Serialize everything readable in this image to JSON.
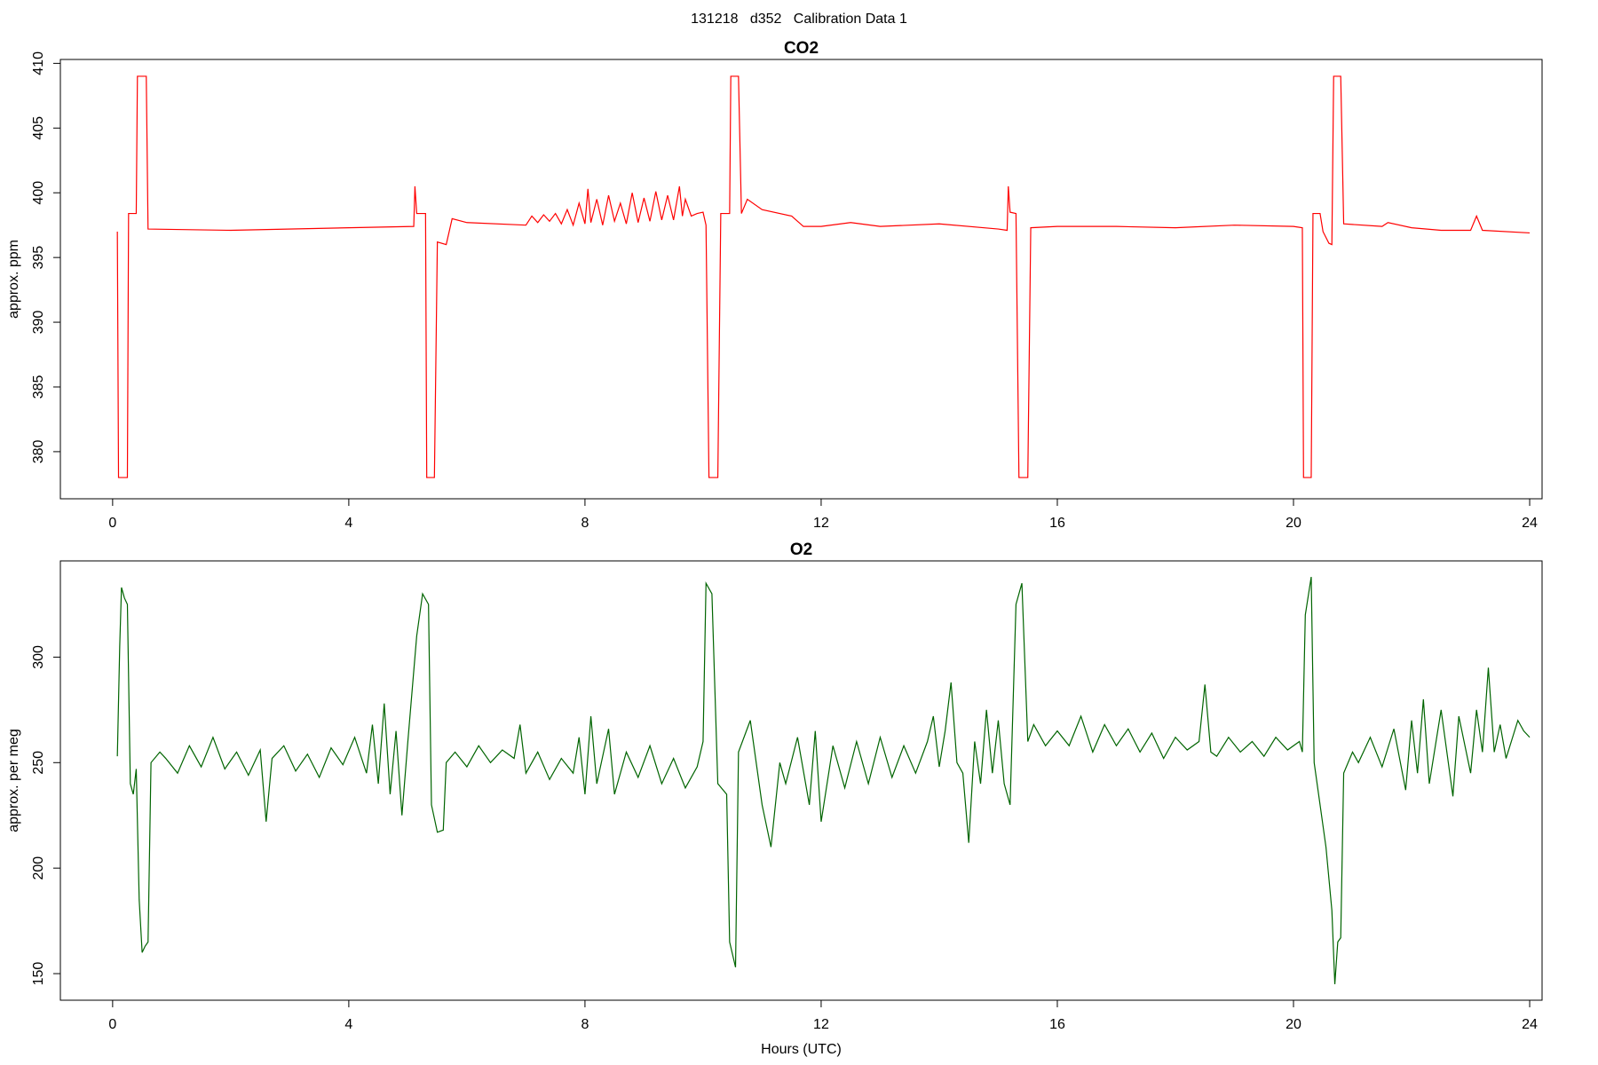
{
  "title": "131218   d352   Calibration Data 1",
  "chart_data": [
    {
      "type": "line",
      "title": "CO2",
      "ylabel": "approx. ppm",
      "color": "#ff0000",
      "xlim": [
        -0.885,
        24.21
      ],
      "xticks": [
        0,
        4,
        8,
        12,
        16,
        20,
        24
      ],
      "ylim": [
        376.36,
        410.3
      ],
      "yticks": [
        380,
        385,
        390,
        395,
        400,
        405,
        410
      ],
      "x": [
        0.08,
        0.1,
        0.25,
        0.27,
        0.4,
        0.42,
        0.57,
        0.6,
        2,
        4,
        5.1,
        5.12,
        5.15,
        5.3,
        5.32,
        5.45,
        5.5,
        5.65,
        5.75,
        6,
        7,
        7.1,
        7.2,
        7.3,
        7.4,
        7.5,
        7.6,
        7.7,
        7.8,
        7.9,
        8.0,
        8.05,
        8.1,
        8.2,
        8.3,
        8.4,
        8.5,
        8.6,
        8.7,
        8.8,
        8.9,
        9.0,
        9.1,
        9.2,
        9.3,
        9.4,
        9.5,
        9.6,
        9.65,
        9.7,
        9.8,
        9.9,
        10.0,
        10.05,
        10.1,
        10.25,
        10.3,
        10.45,
        10.47,
        10.6,
        10.65,
        10.75,
        11,
        11.5,
        11.7,
        12,
        12.5,
        13,
        14,
        15,
        15.15,
        15.17,
        15.2,
        15.3,
        15.35,
        15.5,
        15.55,
        16,
        17,
        18,
        19,
        20,
        20.15,
        20.17,
        20.3,
        20.33,
        20.45,
        20.5,
        20.6,
        20.65,
        20.68,
        20.8,
        20.85,
        21.5,
        21.6,
        22,
        22.5,
        23,
        23.1,
        23.2,
        24
      ],
      "values": [
        397,
        378,
        378,
        398.4,
        398.4,
        409,
        409,
        397.2,
        397.1,
        397.3,
        397.4,
        400.5,
        398.4,
        398.4,
        378,
        378,
        396.2,
        396,
        398,
        397.7,
        397.5,
        398.2,
        397.7,
        398.3,
        397.8,
        398.4,
        397.6,
        398.7,
        397.5,
        399.2,
        397.6,
        400.3,
        397.7,
        399.5,
        397.5,
        399.8,
        397.8,
        399.2,
        397.6,
        400.0,
        397.7,
        399.6,
        397.8,
        400.1,
        397.9,
        399.8,
        397.9,
        400.5,
        398.2,
        399.5,
        398.2,
        398.4,
        398.5,
        397.5,
        378,
        378,
        398.4,
        398.4,
        409,
        409,
        398.4,
        399.5,
        398.7,
        398.2,
        397.4,
        397.4,
        397.7,
        397.4,
        397.6,
        397.2,
        397.1,
        400.5,
        398.5,
        398.4,
        378,
        378,
        397.3,
        397.4,
        397.4,
        397.3,
        397.5,
        397.4,
        397.3,
        378,
        378,
        398.4,
        398.4,
        397,
        396.1,
        396,
        409,
        409,
        397.6,
        397.4,
        397.7,
        397.3,
        397.1,
        397.1,
        398.2,
        397.1,
        396.9
      ]
    },
    {
      "type": "line",
      "title": "O2",
      "ylabel": "approx. per meg",
      "xlabel": "Hours (UTC)",
      "color": "#006400",
      "xlim": [
        -0.885,
        24.21
      ],
      "xticks": [
        0,
        4,
        8,
        12,
        16,
        20,
        24
      ],
      "ylim": [
        137.4,
        345.6
      ],
      "yticks": [
        150,
        200,
        250,
        300
      ],
      "x": [
        0.08,
        0.12,
        0.15,
        0.2,
        0.25,
        0.3,
        0.35,
        0.4,
        0.45,
        0.5,
        0.55,
        0.6,
        0.65,
        0.8,
        0.9,
        1.1,
        1.3,
        1.5,
        1.7,
        1.9,
        2.1,
        2.3,
        2.5,
        2.6,
        2.7,
        2.9,
        3.1,
        3.3,
        3.5,
        3.7,
        3.9,
        4.1,
        4.3,
        4.4,
        4.5,
        4.6,
        4.7,
        4.8,
        4.9,
        5.0,
        5.15,
        5.25,
        5.35,
        5.4,
        5.5,
        5.6,
        5.65,
        5.8,
        6.0,
        6.2,
        6.4,
        6.6,
        6.8,
        6.9,
        7.0,
        7.2,
        7.4,
        7.6,
        7.8,
        7.9,
        8.0,
        8.1,
        8.2,
        8.4,
        8.5,
        8.7,
        8.9,
        9.1,
        9.3,
        9.5,
        9.7,
        9.9,
        10.0,
        10.05,
        10.15,
        10.25,
        10.4,
        10.45,
        10.55,
        10.6,
        10.8,
        11.0,
        11.15,
        11.3,
        11.4,
        11.6,
        11.8,
        11.9,
        12.0,
        12.2,
        12.4,
        12.6,
        12.8,
        13.0,
        13.2,
        13.4,
        13.6,
        13.8,
        13.9,
        14.0,
        14.1,
        14.2,
        14.3,
        14.4,
        14.5,
        14.6,
        14.7,
        14.8,
        14.9,
        15.0,
        15.1,
        15.2,
        15.3,
        15.4,
        15.5,
        15.6,
        15.8,
        16.0,
        16.2,
        16.4,
        16.6,
        16.8,
        17.0,
        17.2,
        17.4,
        17.6,
        17.8,
        18.0,
        18.2,
        18.4,
        18.5,
        18.6,
        18.7,
        18.9,
        19.1,
        19.3,
        19.5,
        19.7,
        19.9,
        20.1,
        20.15,
        20.2,
        20.3,
        20.35,
        20.45,
        20.55,
        20.65,
        20.7,
        20.75,
        20.8,
        20.85,
        21,
        21.1,
        21.3,
        21.5,
        21.7,
        21.9,
        22.0,
        22.1,
        22.2,
        22.3,
        22.5,
        22.7,
        22.8,
        23.0,
        23.1,
        23.2,
        23.3,
        23.4,
        23.5,
        23.6,
        23.8,
        23.9,
        24
      ],
      "values": [
        253,
        305,
        333,
        328,
        325,
        240,
        235,
        247,
        185,
        160,
        163,
        165,
        250,
        255,
        252,
        245,
        258,
        248,
        262,
        247,
        255,
        244,
        256,
        222,
        252,
        258,
        246,
        254,
        243,
        257,
        249,
        262,
        245,
        268,
        240,
        278,
        235,
        265,
        225,
        260,
        310,
        330,
        325,
        230,
        217,
        218,
        250,
        255,
        248,
        258,
        250,
        256,
        252,
        268,
        245,
        255,
        242,
        252,
        245,
        262,
        235,
        272,
        240,
        266,
        235,
        255,
        243,
        258,
        240,
        252,
        238,
        248,
        260,
        335,
        330,
        240,
        235,
        165,
        153,
        255,
        270,
        230,
        210,
        250,
        240,
        262,
        230,
        265,
        222,
        258,
        238,
        260,
        240,
        262,
        243,
        258,
        245,
        260,
        272,
        248,
        265,
        288,
        250,
        245,
        212,
        260,
        240,
        275,
        245,
        270,
        240,
        230,
        325,
        335,
        260,
        268,
        258,
        265,
        258,
        272,
        255,
        268,
        258,
        266,
        255,
        264,
        252,
        262,
        256,
        260,
        287,
        255,
        253,
        262,
        255,
        260,
        253,
        262,
        256,
        260,
        255,
        320,
        338,
        250,
        230,
        210,
        180,
        145,
        165,
        167,
        245,
        255,
        250,
        262,
        248,
        266,
        237,
        270,
        245,
        280,
        240,
        275,
        234,
        272,
        245,
        275,
        255,
        295,
        255,
        268,
        252,
        270,
        265,
        262
      ]
    }
  ]
}
